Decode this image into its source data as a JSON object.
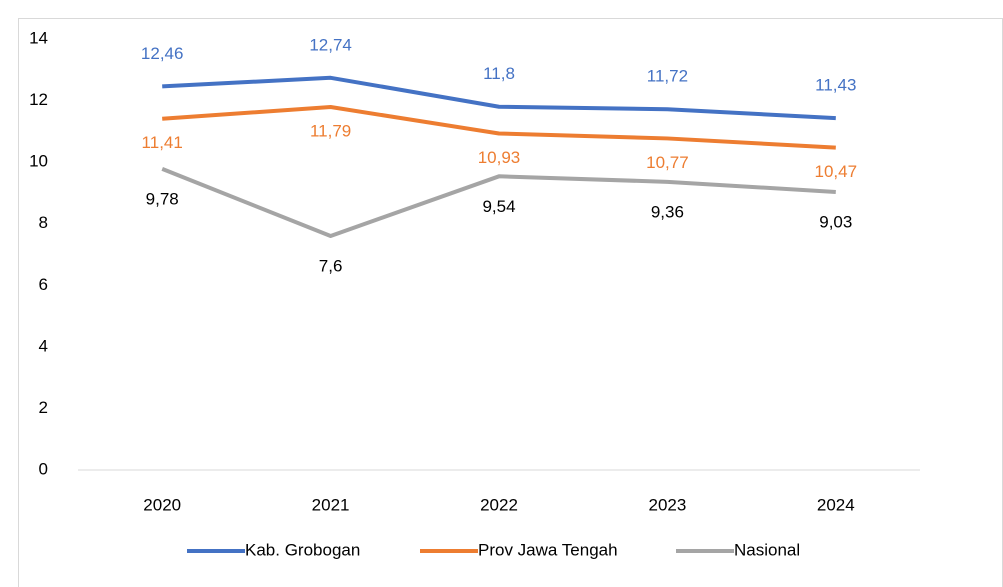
{
  "chart_data": {
    "type": "line",
    "categories": [
      "2020",
      "2021",
      "2022",
      "2023",
      "2024"
    ],
    "series": [
      {
        "name": "Kab. Grobogan",
        "color": "#4472c4",
        "values": [
          12.46,
          12.74,
          11.8,
          11.72,
          11.43
        ],
        "value_labels": [
          "12,46",
          "12,74",
          "11,8",
          "11,72",
          "11,43"
        ]
      },
      {
        "name": "Prov Jawa Tengah",
        "color": "#ed7d31",
        "values": [
          11.41,
          11.79,
          10.93,
          10.77,
          10.47
        ],
        "value_labels": [
          "11,41",
          "11,79",
          "10,93",
          "10,77",
          "10,47"
        ]
      },
      {
        "name": "Nasional",
        "color": "#a5a5a5",
        "values": [
          9.78,
          7.6,
          9.54,
          9.36,
          9.03
        ],
        "value_labels": [
          "9,78",
          "7,6",
          "9,54",
          "9,36",
          "9,03"
        ]
      }
    ],
    "ylim": [
      0,
      14
    ],
    "yticks": [
      0,
      2,
      4,
      6,
      8,
      10,
      12,
      14
    ],
    "grid": false,
    "legend": "bottom"
  }
}
